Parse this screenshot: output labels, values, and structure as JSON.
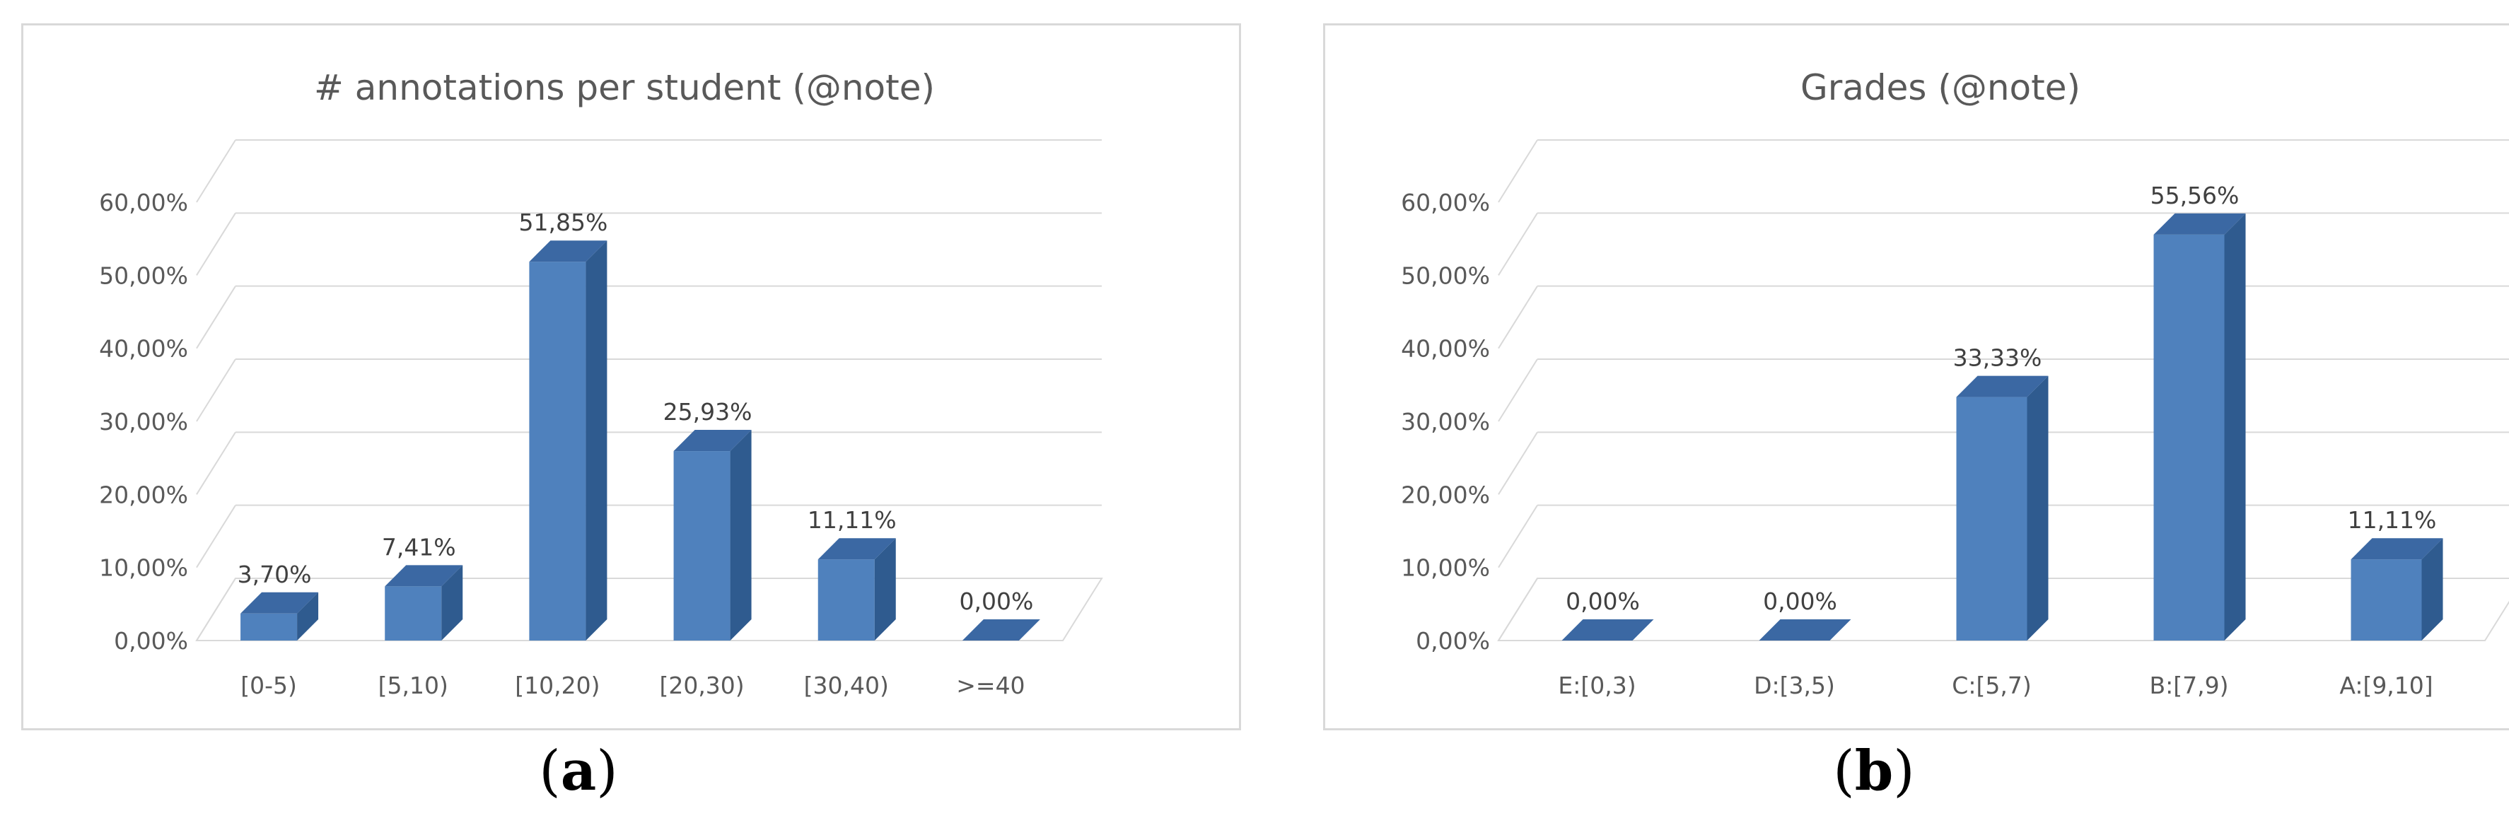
{
  "colors": {
    "bar_front": "#4f81bd",
    "bar_side": "#2f5b8f",
    "bar_top": "#3b68a3",
    "grid": "#d9d9d9",
    "text": "#595959"
  },
  "chart_data": [
    {
      "type": "bar",
      "title": "# annotations per student (@note)",
      "panel_label": "a",
      "categories": [
        "[0-5)",
        "[5,10)",
        "[10,20)",
        "[20,30)",
        "[30,40)",
        ">=40"
      ],
      "values": [
        3.7,
        7.41,
        51.85,
        25.93,
        11.11,
        0.0
      ],
      "data_labels": [
        "3,70%",
        "7,41%",
        "51,85%",
        "25,93%",
        "11,11%",
        "0,00%"
      ],
      "yticks": [
        "0,00%",
        "10,00%",
        "20,00%",
        "30,00%",
        "40,00%",
        "50,00%",
        "60,00%"
      ],
      "ylim": [
        0,
        60
      ],
      "grid": true,
      "xlabel": "",
      "ylabel": ""
    },
    {
      "type": "bar",
      "title": "Grades (@note)",
      "panel_label": "b",
      "categories": [
        "E:[0,3)",
        "D:[3,5)",
        "C:[5,7)",
        "B:[7,9)",
        "A:[9,10]"
      ],
      "values": [
        0.0,
        0.0,
        33.33,
        55.56,
        11.11
      ],
      "data_labels": [
        "0,00%",
        "0,00%",
        "33,33%",
        "55,56%",
        "11,11%"
      ],
      "yticks": [
        "0,00%",
        "10,00%",
        "20,00%",
        "30,00%",
        "40,00%",
        "50,00%",
        "60,00%"
      ],
      "ylim": [
        0,
        60
      ],
      "grid": true,
      "xlabel": "",
      "ylabel": ""
    }
  ]
}
